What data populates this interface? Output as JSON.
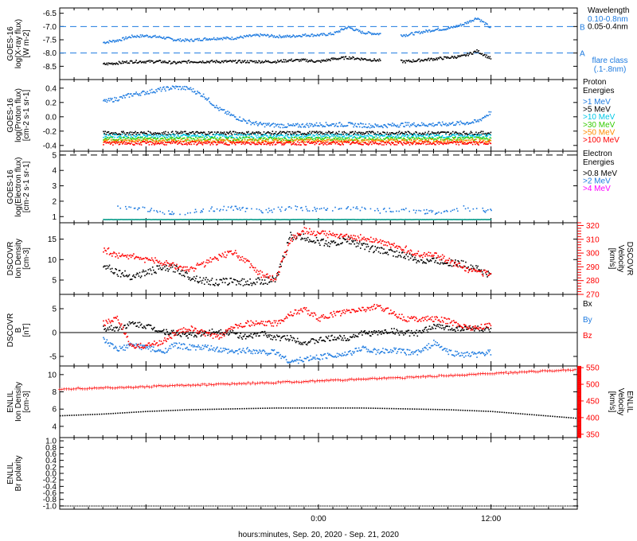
{
  "xlabel": "hours:minutes, Sep. 20, 2020 - Sep. 21, 2020",
  "chart_data": [
    {
      "type": "scatter",
      "ylabel": [
        "GOES-16",
        "log(X-ray flux)",
        "[W m-2]"
      ],
      "ylim": [
        -9.0,
        -6.3
      ],
      "yticks": [
        -6.5,
        -7.0,
        -7.5,
        -8.0,
        -8.5
      ],
      "ytick_labels": [
        "-6.5",
        "-7.0",
        "-7.5",
        "-8.0",
        "-8.5"
      ],
      "legend_title": "Wavelength",
      "legend": [
        {
          "label": "0.10-0.8nm",
          "color": "#1e7be0"
        },
        {
          "label": "0.05-0.4nm",
          "color": "#000000"
        }
      ],
      "reference_lines": [
        {
          "y": -7.0,
          "label": "B"
        },
        {
          "y": -8.0,
          "label": "A"
        }
      ],
      "annotation": [
        "flare class",
        "(.1-.8nm)"
      ],
      "series": [
        {
          "name": "0.10-0.8nm",
          "color": "#1e7be0",
          "x": [
            -15,
            -14,
            -13,
            -12,
            -11,
            -10,
            -9,
            -8,
            -7,
            -6,
            -5,
            -4,
            -3,
            -2,
            -1,
            0,
            1,
            2,
            3,
            4,
            6,
            7,
            8,
            9,
            10,
            11,
            12
          ],
          "y": [
            -7.58,
            -7.5,
            -7.35,
            -7.33,
            -7.38,
            -7.48,
            -7.5,
            -7.45,
            -7.42,
            -7.42,
            -7.35,
            -7.3,
            -7.35,
            -7.35,
            -7.3,
            -7.3,
            -7.25,
            -7.0,
            -7.2,
            -7.25,
            -7.3,
            -7.2,
            -7.1,
            -7.05,
            -6.9,
            -6.65,
            -7.05
          ]
        },
        {
          "name": "0.05-0.4nm",
          "color": "#000000",
          "x": [
            -15,
            -14,
            -13,
            -12,
            -11,
            -10,
            -9,
            -8,
            -7,
            -6,
            -5,
            -4,
            -3,
            -2,
            -1,
            0,
            1,
            2,
            3,
            4,
            6,
            7,
            8,
            9,
            10,
            11,
            12
          ],
          "y": [
            -8.4,
            -8.35,
            -8.3,
            -8.3,
            -8.3,
            -8.35,
            -8.3,
            -8.3,
            -8.3,
            -8.3,
            -8.3,
            -8.3,
            -8.3,
            -8.25,
            -8.25,
            -8.3,
            -8.2,
            -8.15,
            -8.2,
            -8.25,
            -8.3,
            -8.25,
            -8.2,
            -8.15,
            -8.1,
            -7.9,
            -8.2
          ]
        }
      ]
    },
    {
      "type": "scatter",
      "ylabel": [
        "GOES-16",
        "log(Proton flux)",
        "[cm-2 s-1 sr-1]"
      ],
      "ylim": [
        -0.48,
        0.52
      ],
      "yticks": [
        0.4,
        0.2,
        0.0,
        -0.2,
        -0.4
      ],
      "ytick_labels": [
        "0.4",
        "0.2",
        "0.0",
        "-0.2",
        "-0.4"
      ],
      "legend_title": [
        "Proton",
        "Energies"
      ],
      "legend": [
        {
          "label": ">1 MeV",
          "color": "#1e7be0"
        },
        {
          "label": ">5 MeV",
          "color": "#000000"
        },
        {
          "label": ">10 MeV",
          "color": "#00c8e6"
        },
        {
          "label": ">30 MeV",
          "color": "#33cc00"
        },
        {
          "label": ">50 MeV",
          "color": "#ff8c00"
        },
        {
          "label": ">100 MeV",
          "color": "#ff0000"
        }
      ],
      "series": [
        {
          "name": ">1 MeV",
          "color": "#1e7be0",
          "x": [
            -15,
            -14,
            -13,
            -12,
            -11,
            -10,
            -9,
            -8,
            -7,
            -6,
            -5,
            -4,
            -2,
            0,
            2,
            4,
            6,
            8,
            10,
            11,
            12
          ],
          "y": [
            0.22,
            0.26,
            0.32,
            0.35,
            0.39,
            0.42,
            0.4,
            0.3,
            0.12,
            0.02,
            -0.06,
            -0.1,
            -0.12,
            -0.1,
            -0.1,
            -0.12,
            -0.1,
            -0.1,
            -0.08,
            -0.06,
            0.08
          ]
        },
        {
          "name": ">5 MeV",
          "color": "#000000",
          "x": [
            -15,
            -10,
            -5,
            0,
            5,
            10,
            12
          ],
          "y": [
            -0.22,
            -0.22,
            -0.22,
            -0.22,
            -0.22,
            -0.22,
            -0.22
          ]
        },
        {
          "name": ">10 MeV",
          "color": "#00c8e6",
          "x": [
            -15,
            -10,
            -5,
            0,
            5,
            10,
            12
          ],
          "y": [
            -0.26,
            -0.26,
            -0.26,
            -0.26,
            -0.26,
            -0.26,
            -0.26
          ]
        },
        {
          "name": ">30 MeV",
          "color": "#33cc00",
          "x": [
            -15,
            -10,
            -5,
            0,
            5,
            10,
            12
          ],
          "y": [
            -0.3,
            -0.3,
            -0.3,
            -0.3,
            -0.3,
            -0.3,
            -0.3
          ]
        },
        {
          "name": ">50 MeV",
          "color": "#ff8c00",
          "x": [
            -15,
            -10,
            -5,
            0,
            5,
            10,
            12
          ],
          "y": [
            -0.33,
            -0.33,
            -0.33,
            -0.33,
            -0.33,
            -0.33,
            -0.33
          ]
        },
        {
          "name": ">100 MeV",
          "color": "#ff0000",
          "x": [
            -15,
            -10,
            -5,
            0,
            5,
            10,
            12
          ],
          "y": [
            -0.36,
            -0.36,
            -0.36,
            -0.36,
            -0.36,
            -0.36,
            -0.36
          ]
        }
      ]
    },
    {
      "type": "scatter",
      "ylabel": [
        "GOES-16",
        "log(Electron flux)",
        "[cm-2 s-1 sr-1]"
      ],
      "ylim": [
        0.6,
        5.25
      ],
      "yticks": [
        5,
        4,
        3,
        2,
        1
      ],
      "ytick_labels": [
        "5",
        "4",
        "3",
        "2",
        "1"
      ],
      "legend_title": [
        "Electron",
        "Energies"
      ],
      "legend": [
        {
          "label": ">0.8 MeV",
          "color": "#000000"
        },
        {
          "label": ">2 MeV",
          "color": "#1e7be0"
        },
        {
          "label": ">4 MeV",
          "color": "#ff00ff"
        }
      ],
      "reference_lines": [
        {
          "y": 5.0,
          "label": ""
        }
      ],
      "series": [
        {
          "name": ">2 MeV",
          "color": "#1e7be0",
          "x": [
            -14,
            -12,
            -10,
            -8,
            -6,
            -4,
            -2,
            0,
            2,
            4,
            6,
            8,
            10,
            12
          ],
          "y": [
            1.6,
            1.5,
            1.2,
            1.5,
            1.6,
            1.4,
            1.6,
            1.5,
            1.6,
            1.4,
            1.5,
            1.3,
            1.6,
            1.4
          ]
        },
        {
          "name": ">4 MeV",
          "color": "#13a08f",
          "x": [
            -15,
            -10,
            -5,
            0,
            5,
            10,
            12
          ],
          "y": [
            0.85,
            0.85,
            0.85,
            0.85,
            0.85,
            0.85,
            0.85
          ]
        }
      ]
    },
    {
      "type": "scatter",
      "ylabel": [
        "DSCOVR",
        "Ion Density",
        "[cm-3]"
      ],
      "ylim": [
        1.5,
        19
      ],
      "yticks": [
        15,
        10,
        5
      ],
      "ytick_labels": [
        "15",
        "10",
        "5"
      ],
      "y2label": [
        "DSCOVR",
        "Velocity",
        "[km/s]"
      ],
      "y2lim": [
        270,
        322
      ],
      "y2ticks": [
        320,
        310,
        300,
        290,
        280,
        270
      ],
      "y2tick_labels": [
        "320",
        "310",
        "300",
        "290",
        "280",
        "270"
      ],
      "series": [
        {
          "name": "Ion Density",
          "color": "#000000",
          "axis": "left",
          "x": [
            -15,
            -14,
            -13,
            -12,
            -11,
            -10,
            -9,
            -8,
            -7,
            -6,
            -5,
            -4,
            -3,
            -2,
            -1,
            0,
            1,
            2,
            3,
            4,
            5,
            6,
            7,
            8,
            9,
            10,
            11,
            12
          ],
          "y": [
            9,
            7,
            6,
            7,
            8,
            8,
            6,
            5,
            4.5,
            5,
            4.5,
            5,
            5,
            16,
            15.5,
            14.5,
            14,
            15,
            13.5,
            12.5,
            12,
            11,
            10,
            10,
            9.5,
            9,
            8,
            6
          ]
        },
        {
          "name": "Velocity",
          "color": "#ff0000",
          "axis": "right",
          "x": [
            -15,
            -14,
            -13,
            -12,
            -11,
            -10,
            -9,
            -8,
            -7,
            -6,
            -5,
            -4,
            -3,
            -2,
            -1,
            0,
            1,
            2,
            3,
            4,
            5,
            6,
            7,
            8,
            9,
            10,
            11,
            12
          ],
          "y": [
            303,
            299,
            298,
            296,
            294,
            291,
            289,
            292,
            298,
            301,
            294,
            285,
            282,
            310,
            317,
            314,
            314,
            313,
            311,
            309,
            306,
            303,
            300,
            299,
            295,
            290,
            287,
            285
          ]
        }
      ]
    },
    {
      "type": "scatter",
      "ylabel": [
        "DSCOVR",
        "B",
        "[nT]"
      ],
      "ylim": [
        -7,
        8
      ],
      "yticks": [
        5,
        0,
        -5
      ],
      "ytick_labels": [
        "5",
        "0",
        "-5"
      ],
      "zero_line": true,
      "legend": [
        {
          "label": "Bx",
          "color": "#000000"
        },
        {
          "label": "By",
          "color": "#1e7be0"
        },
        {
          "label": "Bz",
          "color": "#ff0000"
        }
      ],
      "series": [
        {
          "name": "Bx",
          "color": "#000000",
          "x": [
            -15,
            -14,
            -13,
            -12,
            -11,
            -10,
            -9,
            -8,
            -7,
            -6,
            -5,
            -4,
            -3,
            -2,
            -1,
            0,
            1,
            2,
            3,
            4,
            5,
            6,
            7,
            8,
            9,
            10,
            11,
            12
          ],
          "y": [
            1,
            1,
            2,
            1.5,
            0.5,
            0,
            -0.5,
            0,
            0.5,
            0,
            -1,
            0,
            -1,
            -1,
            -2,
            -1.5,
            -1,
            -1,
            0,
            0,
            0.5,
            0,
            0,
            1.5,
            1,
            1,
            1,
            0.5
          ]
        },
        {
          "name": "By",
          "color": "#1e7be0",
          "x": [
            -15,
            -14,
            -13,
            -12,
            -11,
            -10,
            -9,
            -8,
            -7,
            -6,
            -5,
            -4,
            -3,
            -2,
            -1,
            0,
            1,
            2,
            3,
            4,
            5,
            6,
            7,
            8,
            9,
            10,
            11,
            12
          ],
          "y": [
            -1.5,
            -3.5,
            -2.5,
            -3,
            -4,
            -2.5,
            -3,
            -3,
            -3.5,
            -4,
            -3.5,
            -4,
            -4,
            -6,
            -5.5,
            -5,
            -4.5,
            -4.5,
            -3,
            -4,
            -3.5,
            -4,
            -4,
            -2,
            -4,
            -4.5,
            -4.5,
            -4
          ]
        },
        {
          "name": "Bz",
          "color": "#ff0000",
          "x": [
            -15,
            -14,
            -13,
            -12,
            -11,
            -10,
            -9,
            -8,
            -7,
            -6,
            -5,
            -4,
            -3,
            -2,
            -1,
            0,
            1,
            2,
            3,
            4,
            5,
            6,
            7,
            8,
            9,
            10,
            11,
            12
          ],
          "y": [
            2,
            3,
            -3,
            -2.5,
            -2,
            0,
            1,
            0,
            -1,
            1.5,
            2,
            2,
            2,
            4,
            5,
            3,
            4,
            4.5,
            5,
            5.5,
            4.5,
            3,
            3,
            3,
            2.5,
            1.5,
            1,
            2
          ]
        }
      ]
    },
    {
      "type": "line",
      "ylabel": [
        "ENLIL",
        "Ion Density",
        "[cm-3]"
      ],
      "ylim": [
        2.7,
        11
      ],
      "yticks": [
        10,
        8,
        6,
        4
      ],
      "ytick_labels": [
        "10",
        "8",
        "6",
        "4"
      ],
      "y2label": [
        "ENLIL",
        "Velocity",
        "[km/s]"
      ],
      "y2lim": [
        340,
        555
      ],
      "y2ticks": [
        550,
        500,
        450,
        400,
        350
      ],
      "y2tick_labels": [
        "550",
        "500",
        "450",
        "400",
        "350"
      ],
      "series": [
        {
          "name": "Ion Density",
          "color": "#000000",
          "axis": "left",
          "x": [
            -18,
            -15,
            -12,
            -9,
            -6,
            -3,
            0,
            3,
            6,
            9,
            12,
            15,
            18
          ],
          "y": [
            5.3,
            5.5,
            5.8,
            6.0,
            6.1,
            6.2,
            6.2,
            6.2,
            6.1,
            6.0,
            5.8,
            5.4,
            5.0
          ]
        },
        {
          "name": "Velocity",
          "color": "#ff0000",
          "axis": "right",
          "x": [
            -18,
            -15,
            -12,
            -9,
            -6,
            -3,
            0,
            3,
            6,
            9,
            12,
            15,
            18
          ],
          "y": [
            487,
            490,
            494,
            498,
            502,
            506,
            511,
            516,
            521,
            527,
            533,
            539,
            545
          ]
        }
      ]
    },
    {
      "type": "line",
      "ylabel": [
        "ENLIL",
        "Br polarity"
      ],
      "ylim": [
        -1.1,
        1.1
      ],
      "yticks": [
        1.0,
        0.8,
        0.6,
        0.4,
        0.2,
        0.0,
        -0.2,
        -0.4,
        -0.6,
        -0.8,
        -1.0
      ],
      "ytick_labels": [
        "1.0",
        "0.8",
        "0.6",
        "0.4",
        "0.2",
        "0.0",
        "-0.2",
        "-0.4",
        "-0.6",
        "-0.8",
        "-1.0"
      ],
      "series": [
        {
          "name": "Br polarity",
          "color": "#000000",
          "x": [
            -18,
            18
          ],
          "y": [
            -1.0,
            -1.0
          ]
        }
      ]
    }
  ],
  "xaxis": {
    "range_hours": [
      -18,
      18
    ],
    "ticks": [
      0,
      12
    ],
    "tick_labels": [
      "0:00",
      "12:00"
    ]
  }
}
